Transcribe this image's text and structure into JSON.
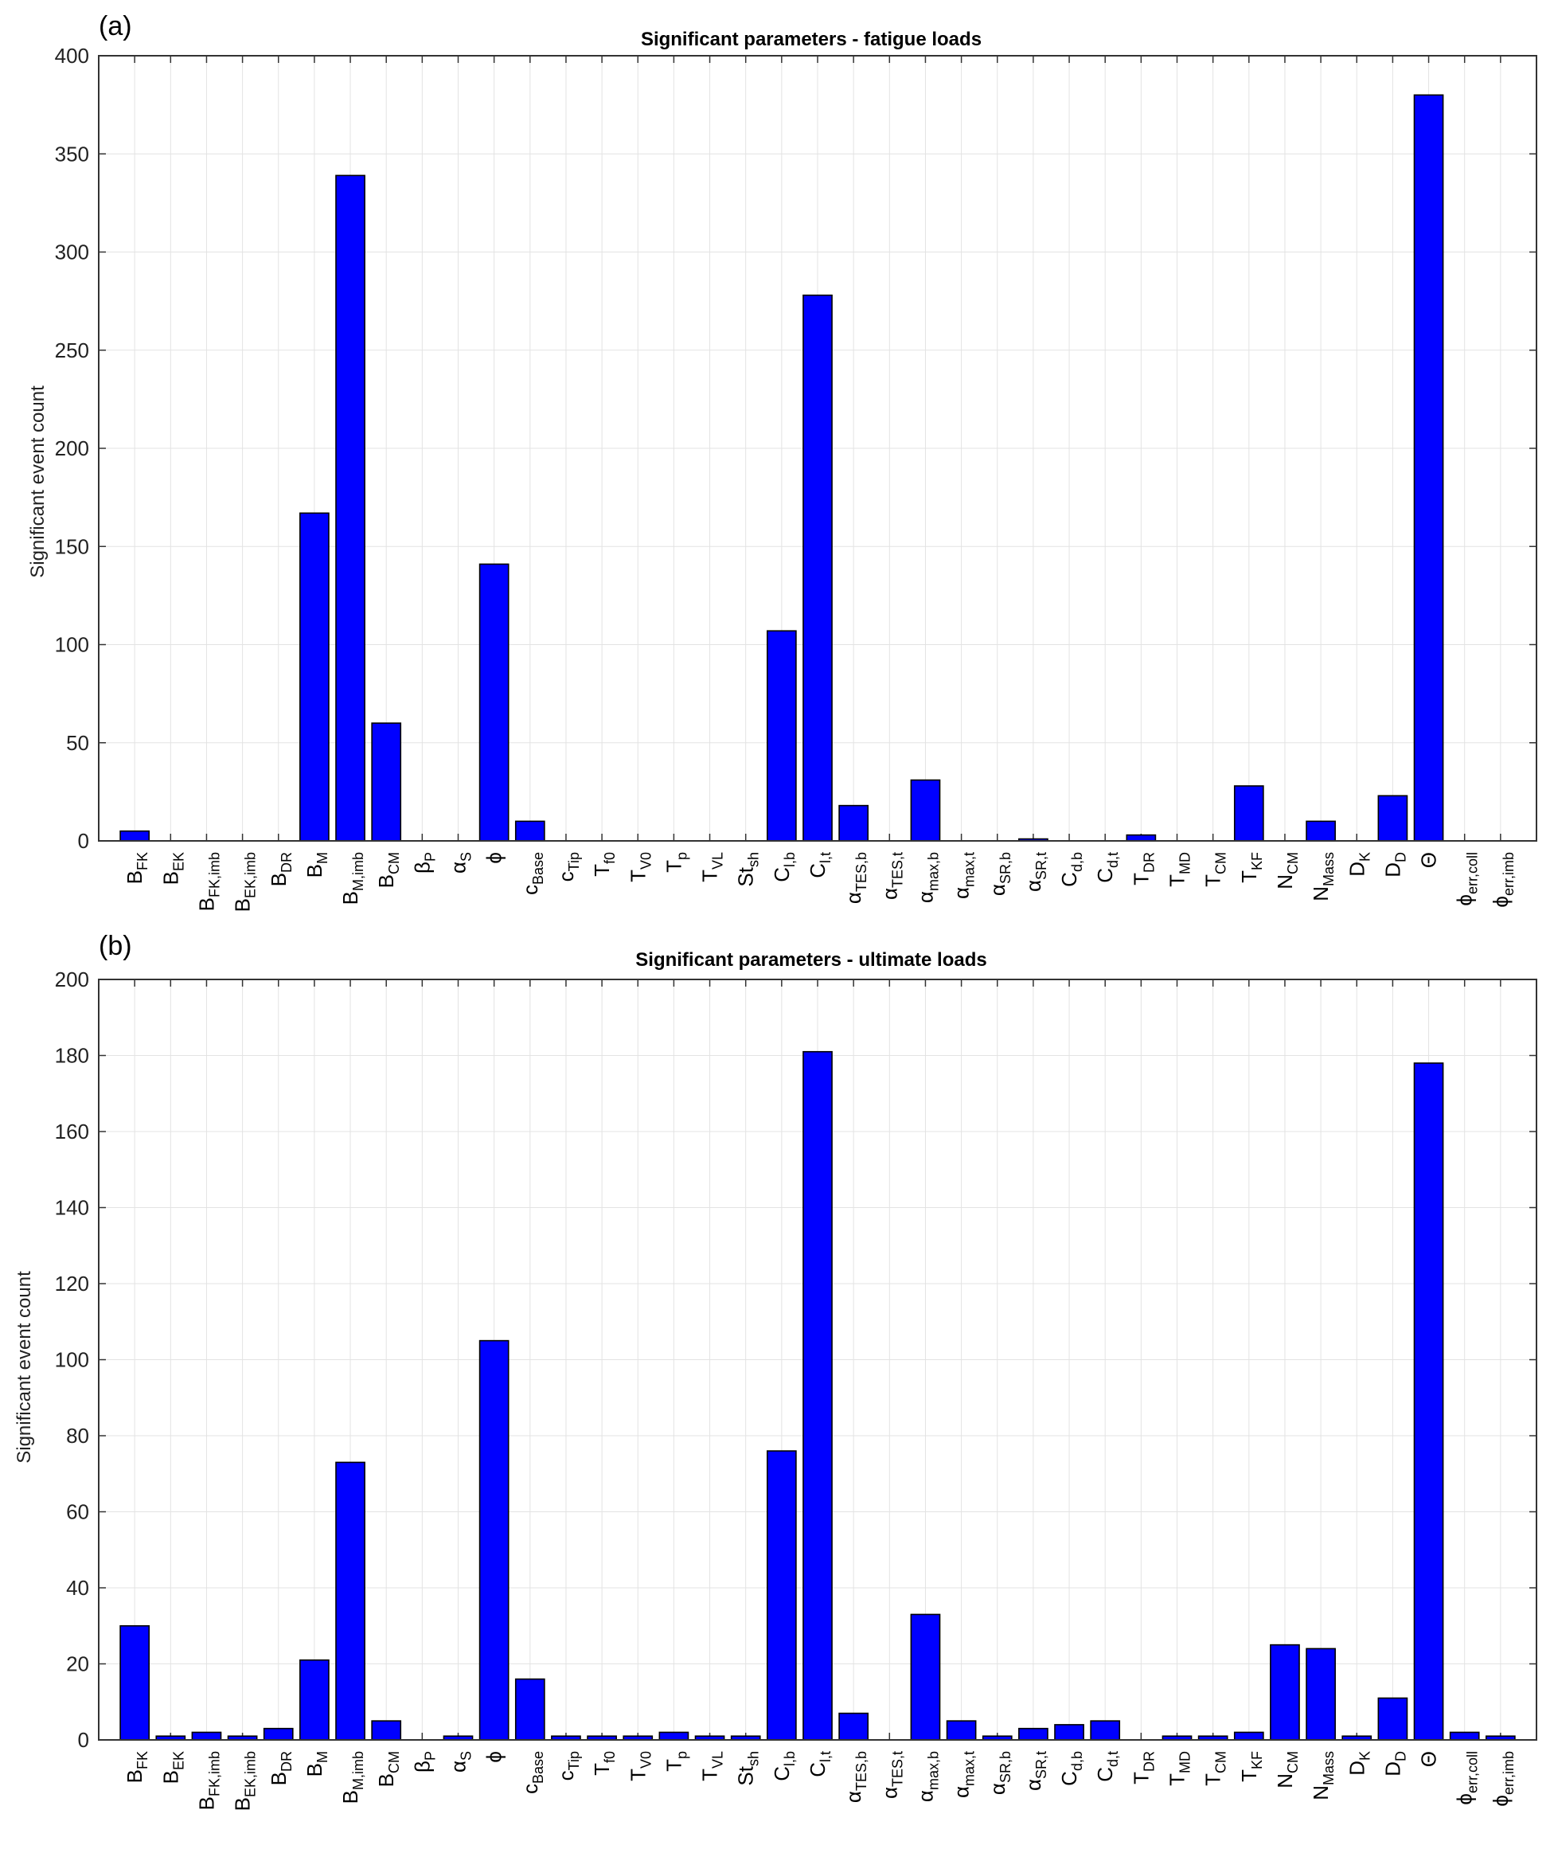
{
  "chart_data": [
    {
      "panel_label": "(a)",
      "type": "bar",
      "title": "Significant parameters - fatigue loads",
      "ylabel": "Significant event count",
      "ylim": [
        0,
        400
      ],
      "yticks": [
        0,
        50,
        100,
        150,
        200,
        250,
        300,
        350,
        400
      ],
      "grid": true,
      "bar_color": "#0000ff",
      "categories": [
        {
          "base": "B",
          "sub": "FK"
        },
        {
          "base": "B",
          "sub": "EK"
        },
        {
          "base": "B",
          "sub": "FK,imb"
        },
        {
          "base": "B",
          "sub": "EK,imb"
        },
        {
          "base": "B",
          "sub": "DR"
        },
        {
          "base": "B",
          "sub": "M"
        },
        {
          "base": "B",
          "sub": "M,imb"
        },
        {
          "base": "B",
          "sub": "CM"
        },
        {
          "base": "β",
          "sub": "P"
        },
        {
          "base": "α",
          "sub": "S"
        },
        {
          "base": "ϕ",
          "sub": ""
        },
        {
          "base": "c",
          "sub": "Base"
        },
        {
          "base": "c",
          "sub": "Tip"
        },
        {
          "base": "T",
          "sub": "f0"
        },
        {
          "base": "T",
          "sub": "V0"
        },
        {
          "base": "T",
          "sub": "p"
        },
        {
          "base": "T",
          "sub": "VL"
        },
        {
          "base": "St",
          "sub": "sh"
        },
        {
          "base": "C",
          "sub": "l,b"
        },
        {
          "base": "C",
          "sub": "l,t"
        },
        {
          "base": "α",
          "sub": "TES,b"
        },
        {
          "base": "α",
          "sub": "TES,t"
        },
        {
          "base": "α",
          "sub": "max,b"
        },
        {
          "base": "α",
          "sub": "max,t"
        },
        {
          "base": "α",
          "sub": "SR,b"
        },
        {
          "base": "α",
          "sub": "SR,t"
        },
        {
          "base": "C",
          "sub": "d,b"
        },
        {
          "base": "C",
          "sub": "d,t"
        },
        {
          "base": "T",
          "sub": "DR"
        },
        {
          "base": "T",
          "sub": "MD"
        },
        {
          "base": "T",
          "sub": "CM"
        },
        {
          "base": "T",
          "sub": "KF"
        },
        {
          "base": "N",
          "sub": "CM"
        },
        {
          "base": "N",
          "sub": "Mass"
        },
        {
          "base": "D",
          "sub": "K"
        },
        {
          "base": "D",
          "sub": "D"
        },
        {
          "base": "Θ",
          "sub": ""
        },
        {
          "base": "ϕ",
          "sub": "err,coll"
        },
        {
          "base": "ϕ",
          "sub": "err,imb"
        }
      ],
      "values": [
        5,
        0,
        0,
        0,
        0,
        167,
        339,
        60,
        0,
        0,
        141,
        10,
        0,
        0,
        0,
        0,
        0,
        0,
        107,
        278,
        18,
        0,
        31,
        0,
        0,
        1,
        0,
        0,
        3,
        0,
        0,
        28,
        0,
        10,
        0,
        23,
        380,
        0,
        0
      ]
    },
    {
      "panel_label": "(b)",
      "type": "bar",
      "title": "Significant parameters - ultimate loads",
      "ylabel": "Significant event count",
      "ylim": [
        0,
        200
      ],
      "yticks": [
        0,
        20,
        40,
        60,
        80,
        100,
        120,
        140,
        160,
        180,
        200
      ],
      "grid": true,
      "bar_color": "#0000ff",
      "categories": [
        {
          "base": "B",
          "sub": "FK"
        },
        {
          "base": "B",
          "sub": "EK"
        },
        {
          "base": "B",
          "sub": "FK,imb"
        },
        {
          "base": "B",
          "sub": "EK,imb"
        },
        {
          "base": "B",
          "sub": "DR"
        },
        {
          "base": "B",
          "sub": "M"
        },
        {
          "base": "B",
          "sub": "M,imb"
        },
        {
          "base": "B",
          "sub": "CM"
        },
        {
          "base": "β",
          "sub": "P"
        },
        {
          "base": "α",
          "sub": "S"
        },
        {
          "base": "ϕ",
          "sub": ""
        },
        {
          "base": "c",
          "sub": "Base"
        },
        {
          "base": "c",
          "sub": "Tip"
        },
        {
          "base": "T",
          "sub": "f0"
        },
        {
          "base": "T",
          "sub": "V0"
        },
        {
          "base": "T",
          "sub": "p"
        },
        {
          "base": "T",
          "sub": "VL"
        },
        {
          "base": "St",
          "sub": "sh"
        },
        {
          "base": "C",
          "sub": "l,b"
        },
        {
          "base": "C",
          "sub": "l,t"
        },
        {
          "base": "α",
          "sub": "TES,b"
        },
        {
          "base": "α",
          "sub": "TES,t"
        },
        {
          "base": "α",
          "sub": "max,b"
        },
        {
          "base": "α",
          "sub": "max,t"
        },
        {
          "base": "α",
          "sub": "SR,b"
        },
        {
          "base": "α",
          "sub": "SR,t"
        },
        {
          "base": "C",
          "sub": "d,b"
        },
        {
          "base": "C",
          "sub": "d,t"
        },
        {
          "base": "T",
          "sub": "DR"
        },
        {
          "base": "T",
          "sub": "MD"
        },
        {
          "base": "T",
          "sub": "CM"
        },
        {
          "base": "T",
          "sub": "KF"
        },
        {
          "base": "N",
          "sub": "CM"
        },
        {
          "base": "N",
          "sub": "Mass"
        },
        {
          "base": "D",
          "sub": "K"
        },
        {
          "base": "D",
          "sub": "D"
        },
        {
          "base": "Θ",
          "sub": ""
        },
        {
          "base": "ϕ",
          "sub": "err,coll"
        },
        {
          "base": "ϕ",
          "sub": "err,imb"
        }
      ],
      "values": [
        30,
        1,
        2,
        1,
        3,
        21,
        73,
        5,
        0,
        1,
        105,
        16,
        1,
        1,
        1,
        2,
        1,
        1,
        76,
        181,
        7,
        0,
        33,
        5,
        1,
        3,
        4,
        5,
        0,
        1,
        1,
        2,
        25,
        24,
        1,
        11,
        178,
        2,
        1
      ]
    }
  ]
}
